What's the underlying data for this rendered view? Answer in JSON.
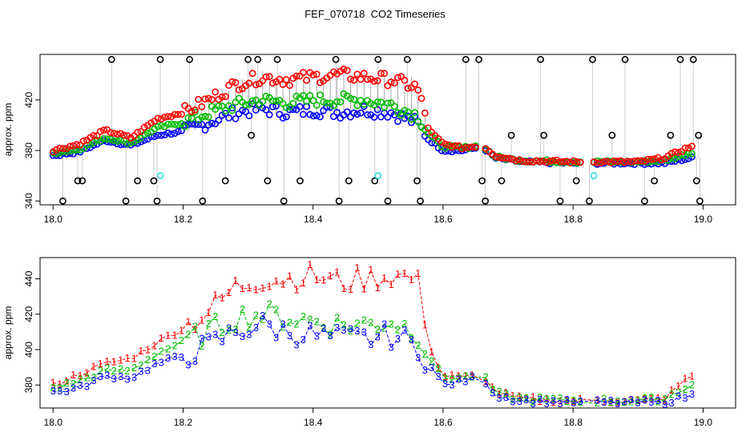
{
  "page": {
    "title": "FEF_070718  CO2 Timeseries"
  },
  "colors": {
    "series1": "#ff0000",
    "series2": "#00bb00",
    "series3": "#0000ff",
    "black": "#000000",
    "cyan": "#33dddd",
    "drop_line": "#999999"
  },
  "chart_data": [
    {
      "type": "scatter",
      "title": "",
      "ylabel": "approx. ppm",
      "xlim": [
        17.98,
        19.05
      ],
      "ylim": [
        337,
        456
      ],
      "x_ticks": [
        18.0,
        18.2,
        18.4,
        18.6,
        18.8,
        19.0
      ],
      "x_tick_labels": [
        "18.0",
        "18.2",
        "18.4",
        "18.6",
        "18.8",
        "19.0"
      ],
      "y_ticks": [
        340,
        380,
        420
      ],
      "y_tick_labels": [
        "340",
        "380",
        "420"
      ],
      "series": [
        {
          "color_key": "series1",
          "anchors": [
            [
              18.0,
              380
            ],
            [
              18.04,
              385
            ],
            [
              18.08,
              396
            ],
            [
              18.12,
              390
            ],
            [
              18.16,
              405
            ],
            [
              18.2,
              410
            ],
            [
              18.24,
              420
            ],
            [
              18.28,
              432
            ],
            [
              18.32,
              438
            ],
            [
              18.36,
              436
            ],
            [
              18.4,
              438
            ],
            [
              18.44,
              440
            ],
            [
              18.48,
              438
            ],
            [
              18.52,
              436
            ],
            [
              18.56,
              430
            ],
            [
              18.58,
              395
            ],
            [
              18.6,
              385
            ],
            [
              18.63,
              382
            ],
            [
              18.66,
              384
            ],
            [
              18.68,
              376
            ],
            [
              18.72,
              372
            ],
            [
              18.8,
              371
            ],
            [
              18.9,
              371
            ],
            [
              18.94,
              374
            ],
            [
              18.98,
              383
            ]
          ]
        },
        {
          "color_key": "series2",
          "anchors": [
            [
              18.0,
              378
            ],
            [
              18.04,
              381
            ],
            [
              18.08,
              390
            ],
            [
              18.12,
              386
            ],
            [
              18.16,
              398
            ],
            [
              18.2,
              402
            ],
            [
              18.24,
              410
            ],
            [
              18.28,
              416
            ],
            [
              18.32,
              420
            ],
            [
              18.36,
              418
            ],
            [
              18.4,
              420
            ],
            [
              18.44,
              420
            ],
            [
              18.48,
              420
            ],
            [
              18.52,
              416
            ],
            [
              18.56,
              408
            ],
            [
              18.58,
              392
            ],
            [
              18.6,
              383
            ],
            [
              18.63,
              382
            ],
            [
              18.66,
              384
            ],
            [
              18.68,
              375
            ],
            [
              18.72,
              372
            ],
            [
              18.8,
              371
            ],
            [
              18.9,
              371
            ],
            [
              18.94,
              372
            ],
            [
              18.98,
              378
            ]
          ]
        },
        {
          "color_key": "series3",
          "anchors": [
            [
              18.0,
              376
            ],
            [
              18.04,
              379
            ],
            [
              18.08,
              388
            ],
            [
              18.12,
              384
            ],
            [
              18.16,
              392
            ],
            [
              18.2,
              395
            ],
            [
              18.24,
              402
            ],
            [
              18.28,
              410
            ],
            [
              18.32,
              413
            ],
            [
              18.36,
              410
            ],
            [
              18.4,
              412
            ],
            [
              18.44,
              410
            ],
            [
              18.48,
              412
            ],
            [
              18.52,
              410
            ],
            [
              18.56,
              402
            ],
            [
              18.58,
              388
            ],
            [
              18.6,
              380
            ],
            [
              18.63,
              380
            ],
            [
              18.66,
              383
            ],
            [
              18.68,
              374
            ],
            [
              18.72,
              371
            ],
            [
              18.8,
              370
            ],
            [
              18.9,
              370
            ],
            [
              18.94,
              370
            ],
            [
              18.98,
              374
            ]
          ]
        }
      ],
      "black_points": [
        [
          18.015,
          340
        ],
        [
          18.038,
          356
        ],
        [
          18.045,
          356
        ],
        [
          18.09,
          452
        ],
        [
          18.112,
          340
        ],
        [
          18.13,
          356
        ],
        [
          18.155,
          356
        ],
        [
          18.16,
          340
        ],
        [
          18.165,
          452
        ],
        [
          18.21,
          452
        ],
        [
          18.23,
          340
        ],
        [
          18.265,
          356
        ],
        [
          18.3,
          452
        ],
        [
          18.305,
          392
        ],
        [
          18.315,
          452
        ],
        [
          18.33,
          356
        ],
        [
          18.345,
          452
        ],
        [
          18.355,
          340
        ],
        [
          18.38,
          356
        ],
        [
          18.435,
          452
        ],
        [
          18.44,
          340
        ],
        [
          18.455,
          356
        ],
        [
          18.495,
          356
        ],
        [
          18.5,
          452
        ],
        [
          18.515,
          340
        ],
        [
          18.545,
          452
        ],
        [
          18.56,
          356
        ],
        [
          18.565,
          340
        ],
        [
          18.635,
          452
        ],
        [
          18.655,
          452
        ],
        [
          18.66,
          356
        ],
        [
          18.665,
          340
        ],
        [
          18.69,
          356
        ],
        [
          18.705,
          392
        ],
        [
          18.75,
          452
        ],
        [
          18.755,
          392
        ],
        [
          18.78,
          340
        ],
        [
          18.805,
          356
        ],
        [
          18.825,
          340
        ],
        [
          18.83,
          452
        ],
        [
          18.86,
          392
        ],
        [
          18.88,
          452
        ],
        [
          18.91,
          340
        ],
        [
          18.925,
          356
        ],
        [
          18.95,
          392
        ],
        [
          18.965,
          452
        ],
        [
          18.985,
          452
        ],
        [
          18.99,
          356
        ],
        [
          18.995,
          340
        ],
        [
          18.993,
          392
        ]
      ],
      "cyan_points": [
        [
          18.165,
          360
        ],
        [
          18.5,
          360
        ],
        [
          18.832,
          360
        ]
      ]
    },
    {
      "type": "line",
      "title": "",
      "ylabel": "approx. ppm",
      "xlim": [
        17.98,
        19.05
      ],
      "ylim": [
        367,
        452
      ],
      "x_ticks": [
        18.0,
        18.2,
        18.4,
        18.6,
        18.8,
        19.0
      ],
      "x_tick_labels": [
        "18.0",
        "18.2",
        "18.4",
        "18.6",
        "18.8",
        "19.0"
      ],
      "y_ticks": [
        380,
        400,
        420,
        440
      ],
      "y_tick_labels": [
        "380",
        "400",
        "420",
        "440"
      ],
      "series": [
        {
          "marker": "1",
          "color_key": "series1",
          "anchors": [
            [
              18.0,
              380
            ],
            [
              18.04,
              386
            ],
            [
              18.08,
              392
            ],
            [
              18.12,
              395
            ],
            [
              18.16,
              404
            ],
            [
              18.2,
              412
            ],
            [
              18.24,
              422
            ],
            [
              18.28,
              435
            ],
            [
              18.32,
              440
            ],
            [
              18.36,
              440
            ],
            [
              18.4,
              442
            ],
            [
              18.44,
              438
            ],
            [
              18.48,
              440
            ],
            [
              18.52,
              442
            ],
            [
              18.56,
              440
            ],
            [
              18.585,
              395
            ],
            [
              18.6,
              385
            ],
            [
              18.63,
              384
            ],
            [
              18.66,
              386
            ],
            [
              18.68,
              376
            ],
            [
              18.72,
              372
            ],
            [
              18.8,
              371
            ],
            [
              18.9,
              371
            ],
            [
              18.94,
              372
            ],
            [
              18.98,
              385
            ]
          ]
        },
        {
          "marker": "2",
          "color_key": "series2",
          "anchors": [
            [
              18.0,
              378
            ],
            [
              18.04,
              382
            ],
            [
              18.08,
              388
            ],
            [
              18.12,
              388
            ],
            [
              18.16,
              398
            ],
            [
              18.2,
              404
            ],
            [
              18.24,
              410
            ],
            [
              18.28,
              418
            ],
            [
              18.32,
              420
            ],
            [
              18.36,
              418
            ],
            [
              18.4,
              416
            ],
            [
              18.44,
              414
            ],
            [
              18.48,
              414
            ],
            [
              18.52,
              416
            ],
            [
              18.56,
              410
            ],
            [
              18.585,
              392
            ],
            [
              18.6,
              384
            ],
            [
              18.63,
              384
            ],
            [
              18.66,
              386
            ],
            [
              18.68,
              375
            ],
            [
              18.72,
              372
            ],
            [
              18.8,
              371
            ],
            [
              18.9,
              371
            ],
            [
              18.94,
              372
            ],
            [
              18.98,
              380
            ]
          ]
        },
        {
          "marker": "3",
          "color_key": "series3",
          "anchors": [
            [
              18.0,
              376
            ],
            [
              18.04,
              378
            ],
            [
              18.08,
              385
            ],
            [
              18.12,
              384
            ],
            [
              18.16,
              392
            ],
            [
              18.2,
              396
            ],
            [
              18.24,
              402
            ],
            [
              18.28,
              410
            ],
            [
              18.32,
              414
            ],
            [
              18.36,
              410
            ],
            [
              18.4,
              408
            ],
            [
              18.44,
              406
            ],
            [
              18.48,
              406
            ],
            [
              18.52,
              408
            ],
            [
              18.56,
              402
            ],
            [
              18.585,
              388
            ],
            [
              18.6,
              380
            ],
            [
              18.63,
              382
            ],
            [
              18.66,
              385
            ],
            [
              18.68,
              374
            ],
            [
              18.72,
              371
            ],
            [
              18.8,
              370
            ],
            [
              18.9,
              370
            ],
            [
              18.94,
              370
            ],
            [
              18.98,
              374
            ]
          ]
        }
      ]
    }
  ]
}
